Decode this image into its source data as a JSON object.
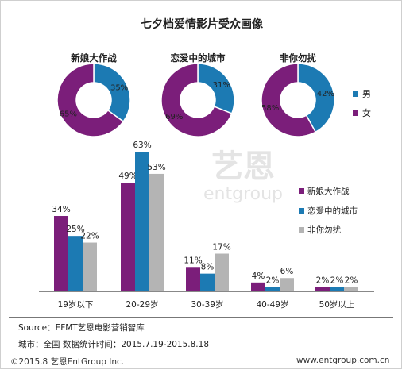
{
  "title": "七夕档爱情影片受众画像",
  "colors": {
    "male": "#1c7ab3",
    "female": "#7b1e7a",
    "bar1": "#7b1e7a",
    "bar2": "#1c7ab3",
    "bar3": "#b4b4b4"
  },
  "watermark": {
    "cn": "艺恩",
    "en": "entgroup"
  },
  "chart_data": [
    {
      "type": "pie",
      "title": "",
      "legend": [
        "男",
        "女"
      ],
      "legend_position": "right",
      "donuts": [
        {
          "name": "新娘大作战",
          "male": 35,
          "female": 65,
          "male_label": "35%",
          "female_label": "65%"
        },
        {
          "name": "恋爱中的城市",
          "male": 31,
          "female": 69,
          "male_label": "31%",
          "female_label": "69%"
        },
        {
          "name": "非你勿扰",
          "male": 42,
          "female": 58,
          "male_label": "42%",
          "female_label": "58%"
        }
      ]
    },
    {
      "type": "bar",
      "categories": [
        "19岁以下",
        "20-29岁",
        "30-39岁",
        "40-49岁",
        "50岁以上"
      ],
      "series": [
        {
          "name": "新娘大作战",
          "values": [
            34,
            49,
            11,
            4,
            2
          ],
          "labels": [
            "34%",
            "49%",
            "11%",
            "4%",
            "2%"
          ]
        },
        {
          "name": "恋爱中的城市",
          "values": [
            25,
            63,
            8,
            2,
            2
          ],
          "labels": [
            "25%",
            "63%",
            "8%",
            "2%",
            "2%"
          ]
        },
        {
          "name": "非你勿扰",
          "values": [
            22,
            53,
            17,
            6,
            2
          ],
          "labels": [
            "22%",
            "53%",
            "17%",
            "6%",
            "2%"
          ]
        }
      ],
      "ylim": [
        0,
        70
      ],
      "grid": false,
      "legend_position": "right"
    }
  ],
  "footer": {
    "source": "Source：EFMT艺恩电影营销智库",
    "scope": "城市：全国   数据统计时间：2015.7.19-2015.8.18",
    "copyright": "©2015.8 艺恩EntGroup Inc.",
    "url": "www.entgroup.com.cn"
  }
}
